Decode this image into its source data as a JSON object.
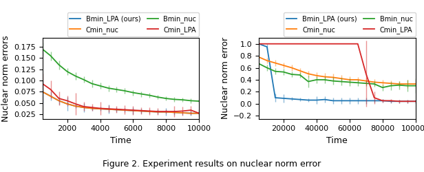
{
  "chart_data": [
    {
      "type": "line",
      "x_label": "Time",
      "y_label": "Nuclear norm errors",
      "xlim": [
        500,
        10000
      ],
      "ylim": [
        0.015,
        0.195
      ],
      "xticks": [
        2000,
        4000,
        6000,
        8000,
        10000
      ],
      "yticks": [
        {
          "value": 0.025,
          "label": "0.025"
        },
        {
          "value": 0.05,
          "label": "0.050"
        },
        {
          "value": 0.075,
          "label": "0.075"
        },
        {
          "value": 0.1,
          "label": "0.100"
        },
        {
          "value": 0.125,
          "label": "0.125"
        },
        {
          "value": 0.15,
          "label": "0.150"
        },
        {
          "value": 0.175,
          "label": "0.175"
        }
      ],
      "legend": "upper right",
      "x": [
        500,
        1000,
        1500,
        2000,
        2500,
        3000,
        3500,
        4000,
        4500,
        5000,
        5500,
        6000,
        6500,
        7000,
        7500,
        8000,
        8500,
        9000,
        9500,
        10000
      ],
      "series": [
        {
          "name": "Bmin_LPA (ours)",
          "values": [
            0.075,
            0.065,
            0.055,
            0.048,
            0.043,
            0.04,
            0.038,
            0.037,
            0.036,
            0.035,
            0.034,
            0.033,
            0.032,
            0.031,
            0.03,
            0.03,
            0.029,
            0.028,
            0.027,
            0.027
          ],
          "yerr": [
            0.025,
            0.01,
            0.008,
            0.015,
            0.005,
            0.01,
            0.005,
            0.005,
            0.01,
            0.005,
            0.005,
            0.008,
            0.005,
            0.005,
            0.005,
            0.008,
            0.005,
            0.005,
            0.005,
            0.005
          ]
        },
        {
          "name": "Cmin_nuc",
          "values": [
            0.075,
            0.065,
            0.055,
            0.048,
            0.043,
            0.04,
            0.038,
            0.037,
            0.036,
            0.035,
            0.034,
            0.033,
            0.032,
            0.031,
            0.03,
            0.03,
            0.029,
            0.028,
            0.027,
            0.027
          ],
          "yerr": [
            0.0,
            0.0,
            0.0,
            0.0,
            0.0,
            0.0,
            0.0,
            0.0,
            0.0,
            0.0,
            0.0,
            0.0,
            0.0,
            0.0,
            0.0,
            0.0,
            0.0,
            0.0,
            0.0,
            0.0
          ]
        },
        {
          "name": "Bmin_nuc",
          "values": [
            0.17,
            0.155,
            0.135,
            0.12,
            0.11,
            0.102,
            0.093,
            0.088,
            0.083,
            0.08,
            0.077,
            0.073,
            0.07,
            0.067,
            0.063,
            0.06,
            0.058,
            0.057,
            0.055,
            0.054
          ],
          "yerr": [
            0.015,
            0.01,
            0.01,
            0.008,
            0.008,
            0.007,
            0.008,
            0.007,
            0.007,
            0.006,
            0.006,
            0.006,
            0.006,
            0.005,
            0.005,
            0.005,
            0.005,
            0.005,
            0.005,
            0.005
          ]
        },
        {
          "name": "Cmin_LPA",
          "values": [
            0.093,
            0.08,
            0.06,
            0.055,
            0.048,
            0.042,
            0.04,
            0.038,
            0.037,
            0.036,
            0.035,
            0.034,
            0.033,
            0.032,
            0.031,
            0.031,
            0.031,
            0.032,
            0.034,
            0.027
          ],
          "yerr": [
            0.022,
            0.02,
            0.015,
            0.012,
            0.025,
            0.01,
            0.008,
            0.015,
            0.008,
            0.008,
            0.01,
            0.01,
            0.008,
            0.008,
            0.008,
            0.005,
            0.012,
            0.01,
            0.01,
            0.008
          ]
        }
      ]
    },
    {
      "type": "line",
      "x_label": "Time",
      "y_label": "Nuclear norm error",
      "xlim": [
        5000,
        100000
      ],
      "ylim": [
        -0.25,
        1.1
      ],
      "xticks": [
        20000,
        40000,
        60000,
        80000,
        100000
      ],
      "yticks": [
        {
          "value": -0.2,
          "label": "−0.2"
        },
        {
          "value": 0.0,
          "label": "0.0"
        },
        {
          "value": 0.2,
          "label": "0.2"
        },
        {
          "value": 0.4,
          "label": "0.4"
        },
        {
          "value": 0.6,
          "label": "0.6"
        },
        {
          "value": 0.8,
          "label": "0.8"
        },
        {
          "value": 1.0,
          "label": "1.0"
        }
      ],
      "legend": "upper right",
      "x": [
        5000,
        10000,
        15000,
        20000,
        25000,
        30000,
        35000,
        40000,
        45000,
        50000,
        55000,
        60000,
        65000,
        70000,
        75000,
        80000,
        85000,
        90000,
        95000,
        100000
      ],
      "series": [
        {
          "name": "Bmin_LPA (ours)",
          "values": [
            1.0,
            0.95,
            0.1,
            0.09,
            0.08,
            0.07,
            0.06,
            0.06,
            0.07,
            0.05,
            0.05,
            0.05,
            0.05,
            0.05,
            0.05,
            0.05,
            0.04,
            0.04,
            0.04,
            0.04
          ],
          "yerr": [
            0.0,
            0.05,
            0.07,
            0.07,
            0.03,
            0.03,
            0.03,
            0.06,
            0.05,
            0.05,
            0.05,
            0.05,
            0.05,
            0.05,
            0.03,
            0.03,
            0.03,
            0.03,
            0.03,
            0.03
          ]
        },
        {
          "name": "Cmin_nuc",
          "values": [
            0.78,
            0.72,
            0.68,
            0.64,
            0.6,
            0.55,
            0.5,
            0.47,
            0.45,
            0.44,
            0.42,
            0.4,
            0.4,
            0.38,
            0.36,
            0.35,
            0.34,
            0.33,
            0.33,
            0.33
          ],
          "yerr": [
            0.0,
            0.05,
            0.05,
            0.05,
            0.05,
            0.05,
            0.05,
            0.05,
            0.06,
            0.06,
            0.06,
            0.06,
            0.05,
            0.05,
            0.05,
            0.05,
            0.05,
            0.05,
            0.07,
            0.07
          ]
        },
        {
          "name": "Bmin_nuc",
          "values": [
            0.67,
            0.6,
            0.54,
            0.53,
            0.49,
            0.48,
            0.37,
            0.4,
            0.4,
            0.38,
            0.37,
            0.36,
            0.35,
            0.34,
            0.33,
            0.27,
            0.3,
            0.31,
            0.3,
            0.3
          ],
          "yerr": [
            0.0,
            0.05,
            0.05,
            0.05,
            0.05,
            0.05,
            0.1,
            0.06,
            0.06,
            0.06,
            0.06,
            0.06,
            0.05,
            0.05,
            0.05,
            0.05,
            0.07,
            0.07,
            0.1,
            0.12
          ]
        },
        {
          "name": "Cmin_LPA",
          "values": [
            1.0,
            1.0,
            1.0,
            1.0,
            1.0,
            1.0,
            1.0,
            1.0,
            1.0,
            1.0,
            1.0,
            1.0,
            1.0,
            0.5,
            0.1,
            0.05,
            0.05,
            0.04,
            0.04,
            0.04
          ],
          "yerr": [
            0.0,
            0.0,
            0.0,
            0.0,
            0.0,
            0.0,
            0.0,
            0.0,
            0.0,
            0.0,
            0.0,
            0.0,
            0.0,
            0.55,
            0.1,
            0.03,
            0.03,
            0.03,
            0.03,
            0.03
          ]
        }
      ]
    }
  ],
  "caption": "Figure 2. Experiment results on nuclear norm error"
}
